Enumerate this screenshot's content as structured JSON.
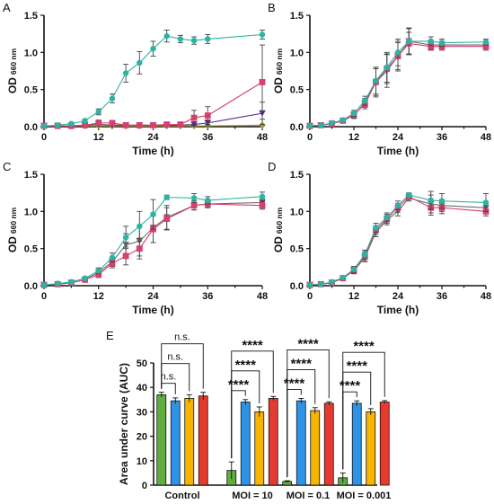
{
  "colors": {
    "teal": "#2bb3a3",
    "magenta": "#d63f6e",
    "purple": "#5b2a86",
    "olive": "#9a9a2a",
    "gray": "#6e6e6e",
    "bar_green": "#5fae3e",
    "bar_blue": "#2e93e6",
    "bar_yellow": "#f7b500",
    "bar_red": "#e63a2f"
  },
  "chart_data": [
    {
      "panel": "A",
      "type": "line",
      "xlabel": "Time (h)",
      "ylabel_main": "OD",
      "ylabel_sub": "660 nm",
      "xlim": [
        0,
        48
      ],
      "ylim": [
        0,
        1.5
      ],
      "xticks": [
        0,
        12,
        24,
        36,
        48
      ],
      "yticks": [
        0,
        0.5,
        1.0,
        1.5
      ],
      "ytick_labels": [
        "0.0",
        "0.5",
        "1.0",
        "1.5"
      ],
      "series": [
        {
          "color": "#9a9a2a",
          "marker": "diamond",
          "x": [
            0,
            3,
            6,
            9,
            12,
            15,
            18,
            21,
            24,
            27,
            30,
            33,
            36,
            48
          ],
          "y": [
            0.01,
            0.01,
            0.01,
            0.01,
            0.01,
            0.01,
            0.01,
            0.01,
            0.01,
            0.01,
            0.01,
            0.01,
            0.01,
            0.02
          ],
          "err": [
            0,
            0,
            0,
            0,
            0,
            0,
            0,
            0,
            0,
            0,
            0,
            0,
            0,
            0.01
          ]
        },
        {
          "color": "#5b2a86",
          "marker": "triangle",
          "x": [
            0,
            3,
            6,
            9,
            12,
            15,
            18,
            21,
            24,
            27,
            30,
            33,
            36,
            48
          ],
          "y": [
            0.01,
            0.01,
            0.01,
            0.02,
            0.03,
            0.02,
            0.02,
            0.02,
            0.02,
            0.02,
            0.02,
            0.03,
            0.05,
            0.18
          ],
          "err": [
            0,
            0,
            0,
            0.01,
            0.02,
            0.01,
            0.01,
            0.01,
            0.01,
            0.01,
            0.01,
            0.02,
            0.04,
            0.15
          ]
        },
        {
          "color": "#d63f6e",
          "marker": "square",
          "x": [
            0,
            3,
            6,
            9,
            12,
            15,
            18,
            21,
            24,
            27,
            30,
            33,
            36,
            48
          ],
          "y": [
            0.01,
            0.01,
            0.01,
            0.02,
            0.05,
            0.05,
            0.02,
            0.02,
            0.02,
            0.03,
            0.03,
            0.12,
            0.15,
            0.6
          ],
          "err": [
            0,
            0,
            0,
            0.01,
            0.04,
            0.03,
            0.01,
            0.01,
            0.01,
            0.01,
            0.02,
            0.1,
            0.12,
            0.5
          ]
        },
        {
          "color": "#2bb3a3",
          "marker": "circle",
          "x": [
            0,
            3,
            6,
            9,
            12,
            15,
            18,
            21,
            24,
            27,
            30,
            33,
            36,
            48
          ],
          "y": [
            0.01,
            0.02,
            0.04,
            0.08,
            0.2,
            0.38,
            0.72,
            0.86,
            1.05,
            1.22,
            1.18,
            1.16,
            1.18,
            1.24
          ],
          "err": [
            0,
            0.01,
            0.01,
            0.02,
            0.04,
            0.06,
            0.12,
            0.15,
            0.1,
            0.08,
            0.05,
            0.05,
            0.06,
            0.06
          ]
        }
      ]
    },
    {
      "panel": "B",
      "type": "line",
      "xlabel": "Time (h)",
      "ylabel_main": "OD",
      "ylabel_sub": "660 nm",
      "xlim": [
        0,
        48
      ],
      "ylim": [
        0,
        1.5
      ],
      "xticks": [
        0,
        12,
        24,
        36,
        48
      ],
      "yticks": [
        0,
        0.5,
        1.0,
        1.5
      ],
      "ytick_labels": [
        "0.0",
        "0.5",
        "1.0",
        "1.5"
      ],
      "series": [
        {
          "color": "#6e6e6e",
          "marker": "triangle",
          "x": [
            0,
            3,
            6,
            9,
            12,
            15,
            18,
            21,
            24,
            27,
            33,
            36,
            48
          ],
          "y": [
            0.01,
            0.02,
            0.04,
            0.08,
            0.15,
            0.32,
            0.6,
            0.75,
            0.95,
            1.15,
            1.1,
            1.1,
            1.1
          ],
          "err": [
            0,
            0.01,
            0.01,
            0.02,
            0.04,
            0.06,
            0.2,
            0.22,
            0.2,
            0.18,
            0.06,
            0.05,
            0.05
          ]
        },
        {
          "color": "#d63f6e",
          "marker": "square",
          "x": [
            0,
            3,
            6,
            9,
            12,
            15,
            18,
            21,
            24,
            27,
            33,
            36,
            48
          ],
          "y": [
            0.01,
            0.02,
            0.04,
            0.08,
            0.16,
            0.3,
            0.6,
            0.78,
            0.95,
            1.12,
            1.08,
            1.08,
            1.08
          ],
          "err": [
            0,
            0.01,
            0.01,
            0.02,
            0.04,
            0.06,
            0.18,
            0.2,
            0.18,
            0.15,
            0.05,
            0.05,
            0.05
          ]
        },
        {
          "color": "#2bb3a3",
          "marker": "circle",
          "x": [
            0,
            3,
            6,
            9,
            12,
            15,
            18,
            21,
            24,
            27,
            33,
            36,
            48
          ],
          "y": [
            0.01,
            0.02,
            0.05,
            0.09,
            0.18,
            0.35,
            0.62,
            0.8,
            1.0,
            1.15,
            1.15,
            1.13,
            1.14
          ],
          "err": [
            0,
            0.01,
            0.01,
            0.02,
            0.04,
            0.06,
            0.18,
            0.2,
            0.18,
            0.17,
            0.06,
            0.05,
            0.04
          ]
        }
      ]
    },
    {
      "panel": "C",
      "type": "line",
      "xlabel": "Time (h)",
      "ylabel_main": "OD",
      "ylabel_sub": "660 nm",
      "xlim": [
        0,
        48
      ],
      "ylim": [
        0,
        1.5
      ],
      "xticks": [
        0,
        12,
        24,
        36,
        48
      ],
      "yticks": [
        0,
        0.5,
        1.0,
        1.5
      ],
      "ytick_labels": [
        "0.0",
        "0.5",
        "1.0",
        "1.5"
      ],
      "series": [
        {
          "color": "#6e6e6e",
          "marker": "triangle",
          "x": [
            0,
            3,
            6,
            9,
            12,
            15,
            18,
            21,
            24,
            27,
            33,
            36,
            48
          ],
          "y": [
            0.01,
            0.02,
            0.04,
            0.08,
            0.18,
            0.32,
            0.55,
            0.6,
            0.78,
            0.92,
            1.08,
            1.1,
            1.12
          ],
          "err": [
            0,
            0.01,
            0.01,
            0.02,
            0.04,
            0.06,
            0.15,
            0.2,
            0.2,
            0.16,
            0.06,
            0.05,
            0.05
          ]
        },
        {
          "color": "#d63f6e",
          "marker": "square",
          "x": [
            0,
            3,
            6,
            9,
            12,
            15,
            18,
            21,
            24,
            27,
            33,
            36,
            48
          ],
          "y": [
            0.01,
            0.02,
            0.04,
            0.08,
            0.15,
            0.3,
            0.4,
            0.5,
            0.76,
            0.9,
            1.08,
            1.1,
            1.08
          ],
          "err": [
            0,
            0.01,
            0.01,
            0.02,
            0.04,
            0.06,
            0.12,
            0.14,
            0.18,
            0.15,
            0.06,
            0.05,
            0.05
          ]
        },
        {
          "color": "#2bb3a3",
          "marker": "circle",
          "x": [
            0,
            3,
            6,
            9,
            12,
            15,
            18,
            21,
            24,
            27,
            33,
            36,
            48
          ],
          "y": [
            0.01,
            0.03,
            0.05,
            0.1,
            0.2,
            0.38,
            0.65,
            0.8,
            0.96,
            1.19,
            1.18,
            1.15,
            1.2
          ],
          "err": [
            0,
            0.01,
            0.01,
            0.02,
            0.04,
            0.06,
            0.15,
            0.2,
            0.2,
            0.03,
            0.06,
            0.05,
            0.06
          ]
        }
      ]
    },
    {
      "panel": "D",
      "type": "line",
      "xlabel": "Time (h)",
      "ylabel_main": "OD",
      "ylabel_sub": "660 nm",
      "xlim": [
        0,
        48
      ],
      "ylim": [
        0,
        1.5
      ],
      "xticks": [
        0,
        12,
        24,
        36,
        48
      ],
      "yticks": [
        0,
        0.5,
        1.0,
        1.5
      ],
      "ytick_labels": [
        "0.0",
        "0.5",
        "1.0",
        "1.5"
      ],
      "series": [
        {
          "color": "#6e6e6e",
          "marker": "triangle",
          "x": [
            0,
            3,
            6,
            9,
            12,
            15,
            18,
            21,
            24,
            27,
            33,
            36,
            48
          ],
          "y": [
            0.01,
            0.02,
            0.04,
            0.1,
            0.2,
            0.38,
            0.72,
            0.88,
            1.0,
            1.18,
            1.1,
            1.08,
            1.05
          ],
          "err": [
            0,
            0.01,
            0.01,
            0.02,
            0.04,
            0.06,
            0.06,
            0.06,
            0.06,
            0.04,
            0.12,
            0.08,
            0.06
          ]
        },
        {
          "color": "#d63f6e",
          "marker": "square",
          "x": [
            0,
            3,
            6,
            9,
            12,
            15,
            18,
            21,
            24,
            27,
            33,
            36,
            48
          ],
          "y": [
            0.01,
            0.02,
            0.04,
            0.1,
            0.21,
            0.4,
            0.75,
            0.9,
            1.05,
            1.2,
            1.05,
            1.05,
            1.0
          ],
          "err": [
            0,
            0.01,
            0.01,
            0.02,
            0.04,
            0.06,
            0.06,
            0.06,
            0.06,
            0.04,
            0.1,
            0.08,
            0.06
          ]
        },
        {
          "color": "#2bb3a3",
          "marker": "circle",
          "x": [
            0,
            3,
            6,
            9,
            12,
            15,
            18,
            21,
            24,
            27,
            33,
            36,
            48
          ],
          "y": [
            0.01,
            0.02,
            0.05,
            0.11,
            0.22,
            0.42,
            0.78,
            0.92,
            1.08,
            1.22,
            1.15,
            1.14,
            1.12
          ],
          "err": [
            0,
            0.01,
            0.01,
            0.02,
            0.04,
            0.06,
            0.06,
            0.06,
            0.06,
            0.03,
            0.12,
            0.1,
            0.12
          ]
        }
      ]
    },
    {
      "panel": "E",
      "type": "bar",
      "ylabel": "Area under curve (AUC)",
      "ylim": [
        0,
        50
      ],
      "yticks": [
        0,
        10,
        20,
        30,
        40,
        50
      ],
      "categories": [
        "Control",
        "MOI = 10",
        "MOI = 0.1",
        "MOI = 0.001"
      ],
      "bar_colors": [
        "#5fae3e",
        "#2e93e6",
        "#f7b500",
        "#e63a2f"
      ],
      "values": [
        [
          37.0,
          34.5,
          35.5,
          36.5
        ],
        [
          6.0,
          34.0,
          30.0,
          35.5
        ],
        [
          1.5,
          34.5,
          30.5,
          33.5
        ],
        [
          3.0,
          33.5,
          30.0,
          34.0
        ]
      ],
      "errors": [
        [
          1.0,
          1.2,
          1.5,
          1.5
        ],
        [
          3.5,
          1.0,
          2.0,
          0.8
        ],
        [
          0.3,
          1.0,
          1.2,
          0.6
        ],
        [
          2.0,
          1.0,
          1.3,
          0.6
        ]
      ],
      "annotations": [
        {
          "group": 0,
          "labels": [
            "n.s.",
            "n.s.",
            "n.s."
          ]
        },
        {
          "group": 1,
          "labels": [
            "****",
            "****",
            "****"
          ]
        },
        {
          "group": 2,
          "labels": [
            "****",
            "****",
            "****"
          ]
        },
        {
          "group": 3,
          "labels": [
            "****",
            "****",
            "****"
          ]
        }
      ]
    }
  ]
}
